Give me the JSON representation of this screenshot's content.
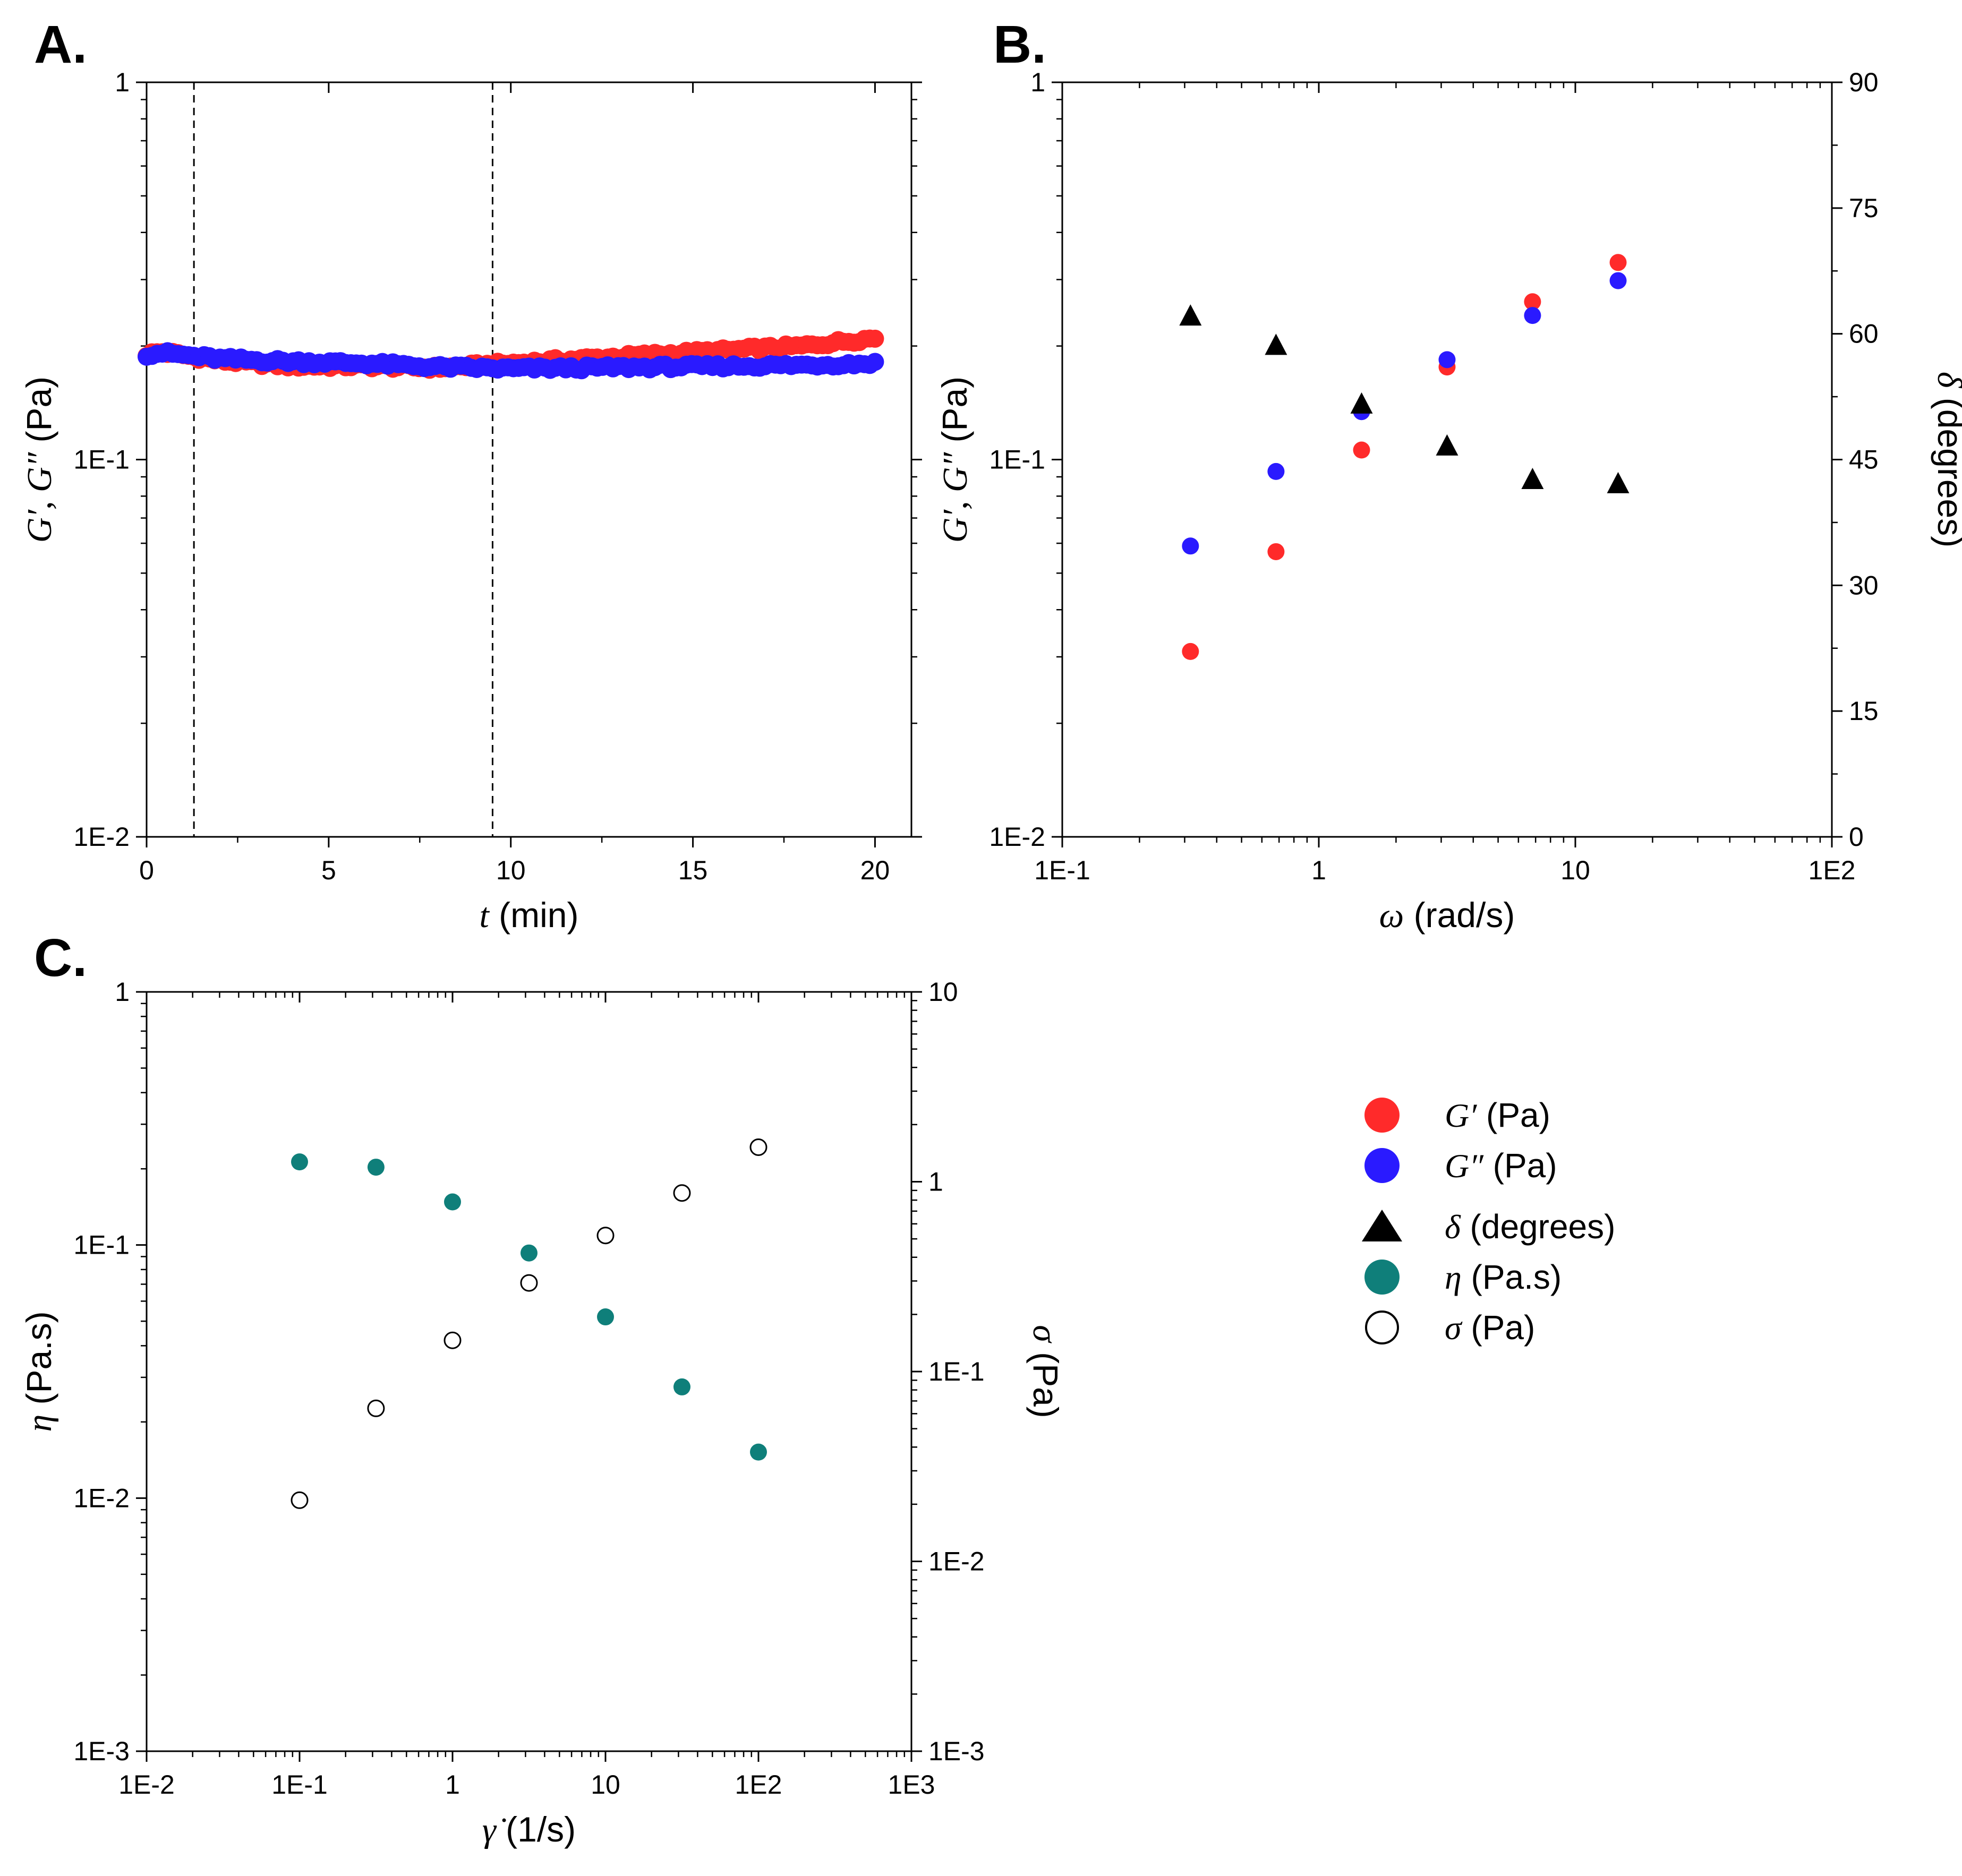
{
  "panels": {
    "A": {
      "letter": "A."
    },
    "B": {
      "letter": "B."
    },
    "C": {
      "letter": "C."
    }
  },
  "legend": [
    {
      "sym": "G′",
      "unit": "(Pa)",
      "color": "#ff2a2a",
      "marker": "filled-circle"
    },
    {
      "sym": "G″",
      "unit": "(Pa)",
      "color": "#2a1aff",
      "marker": "filled-circle"
    },
    {
      "sym": "δ",
      "unit": "(degrees)",
      "color": "#000000",
      "marker": "filled-triangle"
    },
    {
      "sym": "η",
      "unit": "(Pa.s)",
      "color": "#0f7f7a",
      "marker": "filled-circle"
    },
    {
      "sym": "σ",
      "unit": "(Pa)",
      "color": "#000000",
      "marker": "open-circle"
    }
  ],
  "chart_data": [
    {
      "id": "A",
      "type": "scatter",
      "x_scale": "linear",
      "y_scale": "log",
      "xlim": [
        0,
        21
      ],
      "ylim": [
        0.01,
        1
      ],
      "x_ticks": [
        0,
        5,
        10,
        15,
        20
      ],
      "x_tick_labels": [
        "0",
        "5",
        "10",
        "15",
        "20"
      ],
      "y_ticks": [
        0.01,
        0.1,
        1
      ],
      "y_tick_labels": [
        "1E-2",
        "1E-1",
        "1"
      ],
      "xlabel": {
        "sym": "t",
        "unit": " (min)"
      },
      "ylabel": {
        "sym": "G′, G″",
        "unit": " (Pa)"
      },
      "vlines": [
        1.3,
        9.5
      ],
      "series": [
        {
          "name": "G′ (Pa)",
          "color": "#ff2a2a",
          "generator": "gprime_time",
          "t_start": 0,
          "t_end": 20,
          "n": 140,
          "keypoints": [
            [
              0,
              0.19
            ],
            [
              0.4,
              0.193
            ],
            [
              2,
              0.183
            ],
            [
              4,
              0.177
            ],
            [
              6,
              0.177
            ],
            [
              8,
              0.175
            ],
            [
              10,
              0.18
            ],
            [
              12,
              0.185
            ],
            [
              14,
              0.19
            ],
            [
              16,
              0.195
            ],
            [
              18,
              0.2
            ],
            [
              20,
              0.21
            ]
          ]
        },
        {
          "name": "G″ (Pa)",
          "color": "#2a1aff",
          "generator": "gdoubleprime_time",
          "t_start": 0,
          "t_end": 20,
          "n": 140,
          "keypoints": [
            [
              0,
              0.19
            ],
            [
              0.4,
              0.192
            ],
            [
              2,
              0.185
            ],
            [
              4,
              0.182
            ],
            [
              6,
              0.18
            ],
            [
              8,
              0.176
            ],
            [
              10,
              0.174
            ],
            [
              12,
              0.175
            ],
            [
              14,
              0.176
            ],
            [
              16,
              0.177
            ],
            [
              18,
              0.178
            ],
            [
              20,
              0.18
            ]
          ]
        }
      ]
    },
    {
      "id": "B",
      "type": "scatter",
      "x_scale": "log",
      "y_scale": "log",
      "y2_scale": "linear",
      "xlim": [
        0.1,
        100
      ],
      "ylim": [
        0.01,
        1
      ],
      "y2lim": [
        0,
        90
      ],
      "x_ticks": [
        0.1,
        1,
        10,
        100
      ],
      "x_tick_labels": [
        "1E-1",
        "1",
        "10",
        "1E2"
      ],
      "y_ticks": [
        0.01,
        0.1,
        1
      ],
      "y_tick_labels": [
        "1E-2",
        "1E-1",
        "1"
      ],
      "y2_ticks": [
        0,
        15,
        30,
        45,
        60,
        75,
        90
      ],
      "y2_tick_labels": [
        "0",
        "15",
        "30",
        "45",
        "60",
        "75",
        "90"
      ],
      "xlabel": {
        "sym": "ω",
        "unit": " (rad/s)"
      },
      "ylabel": {
        "sym": "G′, G″",
        "unit": " (Pa)"
      },
      "y2label": {
        "sym": "δ",
        "unit": " (degrees)"
      },
      "series": [
        {
          "name": "G′ (Pa)",
          "color": "#ff2a2a",
          "marker": "circle",
          "axis": "left",
          "x": [
            0.316,
            0.681,
            1.468,
            3.162,
            6.81,
            14.68
          ],
          "y": [
            0.031,
            0.057,
            0.106,
            0.176,
            0.262,
            0.333
          ]
        },
        {
          "name": "G″ (Pa)",
          "color": "#2a1aff",
          "marker": "circle",
          "axis": "left",
          "x": [
            0.316,
            0.681,
            1.468,
            3.162,
            6.81,
            14.68
          ],
          "y": [
            0.059,
            0.093,
            0.134,
            0.184,
            0.241,
            0.298
          ]
        },
        {
          "name": "δ (degrees)",
          "color": "#000000",
          "marker": "triangle",
          "axis": "right",
          "x": [
            0.316,
            0.681,
            1.468,
            3.162,
            6.81,
            14.68
          ],
          "y": [
            62,
            58.5,
            51.5,
            46.5,
            42.5,
            42
          ]
        }
      ]
    },
    {
      "id": "C",
      "type": "scatter",
      "x_scale": "log",
      "y_scale": "log",
      "y2_scale": "log",
      "xlim": [
        0.01,
        1000
      ],
      "ylim": [
        0.001,
        1
      ],
      "y2lim": [
        0.001,
        10
      ],
      "x_ticks": [
        0.01,
        0.1,
        1,
        10,
        100,
        1000
      ],
      "x_tick_labels": [
        "1E-2",
        "1E-1",
        "1",
        "10",
        "1E2",
        "1E3"
      ],
      "y_ticks": [
        0.001,
        0.01,
        0.1,
        1
      ],
      "y_tick_labels": [
        "1E-3",
        "1E-2",
        "1E-1",
        "1"
      ],
      "y2_ticks": [
        0.001,
        0.01,
        0.1,
        1,
        10
      ],
      "y2_tick_labels": [
        "1E-3",
        "1E-2",
        "1E-1",
        "1",
        "10"
      ],
      "xlabel": {
        "sym": "γ̇",
        "unit": " (1/s)"
      },
      "ylabel": {
        "sym": "η",
        "unit": " (Pa.s)"
      },
      "y2label": {
        "sym": "σ",
        "unit": " (Pa)"
      },
      "series": [
        {
          "name": "η (Pa.s)",
          "color": "#0f7f7a",
          "marker": "circle",
          "axis": "left",
          "x": [
            0.1,
            0.316,
            1,
            3.162,
            10,
            31.62,
            100
          ],
          "y": [
            0.213,
            0.203,
            0.148,
            0.093,
            0.052,
            0.0275,
            0.0152
          ]
        },
        {
          "name": "σ (Pa)",
          "color": "#000000",
          "marker": "open-circle",
          "axis": "right",
          "x": [
            0.1,
            0.316,
            1,
            3.162,
            10,
            31.62,
            100
          ],
          "y": [
            0.021,
            0.064,
            0.146,
            0.293,
            0.521,
            0.872,
            1.52
          ]
        }
      ]
    }
  ]
}
